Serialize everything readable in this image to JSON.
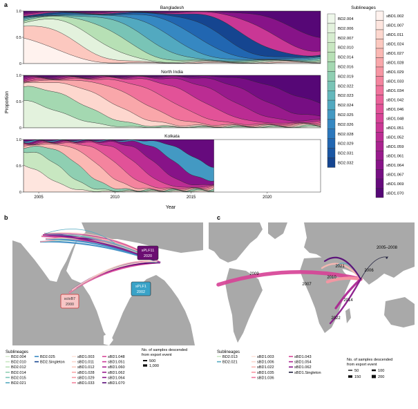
{
  "panel_labels": {
    "a": "a",
    "b": "b",
    "c": "c"
  },
  "chart_data": {
    "type": "area",
    "subtype": "stacked-proportion",
    "ylabel": "Proportion",
    "xlabel": "Year",
    "ylim": [
      0,
      1.0
    ],
    "y_ticks": [
      "0",
      "0.5",
      "1.0"
    ],
    "x_ticks": [
      "2005",
      "2010",
      "2015",
      "2020"
    ],
    "x_tick_values": [
      2005,
      2010,
      2015,
      2020
    ],
    "panels": [
      {
        "title": "Bangladesh",
        "xlim": [
          2004,
          2023.5
        ]
      },
      {
        "title": "North India",
        "xlim": [
          2004,
          2023.5
        ]
      },
      {
        "title": "Kolkata",
        "xlim": [
          2004,
          2023.5
        ],
        "data_end": 2016.5
      }
    ]
  },
  "legend_a": {
    "title": "Sublineages",
    "bd2_col": [
      {
        "label": "BD2.004",
        "color": "#eef7ea"
      },
      {
        "label": "BD2.006",
        "color": "#e3f2dd"
      },
      {
        "label": "BD2.007",
        "color": "#d6edcf"
      },
      {
        "label": "BD2.010",
        "color": "#c8e7c1"
      },
      {
        "label": "BD2.014",
        "color": "#b7e0b5"
      },
      {
        "label": "BD2.016",
        "color": "#a4d8b1"
      },
      {
        "label": "BD2.019",
        "color": "#8fcfb2"
      },
      {
        "label": "BD2.022",
        "color": "#79c4b6"
      },
      {
        "label": "BD2.023",
        "color": "#64b8bc"
      },
      {
        "label": "BD2.024",
        "color": "#52a9c0"
      },
      {
        "label": "BD2.025",
        "color": "#4399c3"
      },
      {
        "label": "BD2.026",
        "color": "#3688c2"
      },
      {
        "label": "BD2.028",
        "color": "#2b77bc"
      },
      {
        "label": "BD2.029",
        "color": "#2166b1"
      },
      {
        "label": "BD2.031",
        "color": "#1a56a3"
      },
      {
        "label": "BD2.032",
        "color": "#154590"
      }
    ],
    "sbd1_col": [
      {
        "label": "sBD1.002",
        "color": "#fff2ee"
      },
      {
        "label": "sBD1.007",
        "color": "#fee5de"
      },
      {
        "label": "sBD1.011",
        "color": "#fdd7ce"
      },
      {
        "label": "sBD1.024",
        "color": "#fcc8bf"
      },
      {
        "label": "sBD1.027",
        "color": "#fbb8b3"
      },
      {
        "label": "sBD1.028",
        "color": "#f9a7aa"
      },
      {
        "label": "sBD1.029",
        "color": "#f796a3"
      },
      {
        "label": "sBD1.033",
        "color": "#f4849e"
      },
      {
        "label": "sBD1.034",
        "color": "#f0729b"
      },
      {
        "label": "sBD1.042",
        "color": "#ea6199"
      },
      {
        "label": "sBD1.046",
        "color": "#e25298"
      },
      {
        "label": "sBD1.048",
        "color": "#d74497"
      },
      {
        "label": "sBD1.051",
        "color": "#ca3795"
      },
      {
        "label": "sBD1.052",
        "color": "#bb2c93"
      },
      {
        "label": "sBD1.059",
        "color": "#aa2290"
      },
      {
        "label": "sBD1.061",
        "color": "#981a8c"
      },
      {
        "label": "sBD1.064",
        "color": "#871388"
      },
      {
        "label": "sBD1.067",
        "color": "#760e83"
      },
      {
        "label": "sBD1.069",
        "color": "#660a7d"
      },
      {
        "label": "sBD1.070",
        "color": "#560776"
      }
    ]
  },
  "map_b": {
    "annotations": [
      {
        "label": "sPLF11",
        "year": "2020",
        "color": "#6b0d72",
        "text_color": "#ffffff"
      },
      {
        "label": "sPLF1",
        "year": "2002",
        "color": "#3aa3c8",
        "text_color": "#ffffff"
      },
      {
        "label": "sctxB7",
        "year": "2000",
        "color": "#f7c6c6",
        "text_color": "#333333"
      }
    ],
    "legend": {
      "title": "Sublineages",
      "col1": [
        {
          "label": "BD2.004",
          "color": "#d6edcf"
        },
        {
          "label": "BD2.010",
          "color": "#c8e7c1"
        },
        {
          "label": "BD2.012",
          "color": "#b7e0b5"
        },
        {
          "label": "BD2.014",
          "color": "#8fcfb2"
        },
        {
          "label": "BD2.015",
          "color": "#79c4b6"
        },
        {
          "label": "BD2.021",
          "color": "#52a9c0"
        }
      ],
      "col2": [
        {
          "label": "BD2.025",
          "color": "#3688c2"
        },
        {
          "label": "BD2.Singleton",
          "color": "#154590"
        }
      ],
      "col3": [
        {
          "label": "sBD1.003",
          "color": "#fee5de"
        },
        {
          "label": "sBD1.011",
          "color": "#fdd7ce"
        },
        {
          "label": "sBD1.012",
          "color": "#fcc8bf"
        },
        {
          "label": "sBD1.028",
          "color": "#f9a7aa"
        },
        {
          "label": "sBD1.029",
          "color": "#f796a3"
        },
        {
          "label": "sBD1.033",
          "color": "#f4849e"
        }
      ],
      "col4": [
        {
          "label": "sBD1.048",
          "color": "#d74497"
        },
        {
          "label": "sBD1.051",
          "color": "#ca3795"
        },
        {
          "label": "sBD1.060",
          "color": "#aa2290"
        },
        {
          "label": "sBD1.062",
          "color": "#981a8c"
        },
        {
          "label": "sBD1.064",
          "color": "#871388"
        },
        {
          "label": "sBD1.070",
          "color": "#560776"
        }
      ],
      "size_title_1": "No. of samples descended",
      "size_title_2": "from export event",
      "sizes": [
        {
          "label": "500"
        },
        {
          "label": "1,000"
        }
      ]
    }
  },
  "map_c": {
    "year_labels": [
      "2009",
      "2021",
      "2006",
      "2005–2008",
      "2010",
      "2007",
      "2014",
      "2022"
    ],
    "legend": {
      "title": "Sublineages",
      "col1": [
        {
          "label": "BD2.013",
          "color": "#c8e7c1"
        },
        {
          "label": "BD2.021",
          "color": "#52a9c0"
        }
      ],
      "col2": [
        {
          "label": "sBD1.003",
          "color": "#fee5de"
        },
        {
          "label": "sBD1.006",
          "color": "#fdd7ce"
        },
        {
          "label": "sBD1.022",
          "color": "#fbb8b3"
        },
        {
          "label": "sBD1.035",
          "color": "#f796a3"
        },
        {
          "label": "sBD1.036",
          "color": "#f0729b"
        }
      ],
      "col3": [
        {
          "label": "sBD1.043",
          "color": "#d74497"
        },
        {
          "label": "sBD1.054",
          "color": "#aa2290"
        },
        {
          "label": "sBD1.062",
          "color": "#871388"
        },
        {
          "label": "sBD1.Singleton",
          "color": "#1b1b3a"
        }
      ],
      "size_title_1": "No. of samples descended",
      "size_title_2": "from export event",
      "sizes": [
        {
          "label": "50"
        },
        {
          "label": "100"
        },
        {
          "label": "150"
        },
        {
          "label": "200"
        }
      ]
    }
  }
}
